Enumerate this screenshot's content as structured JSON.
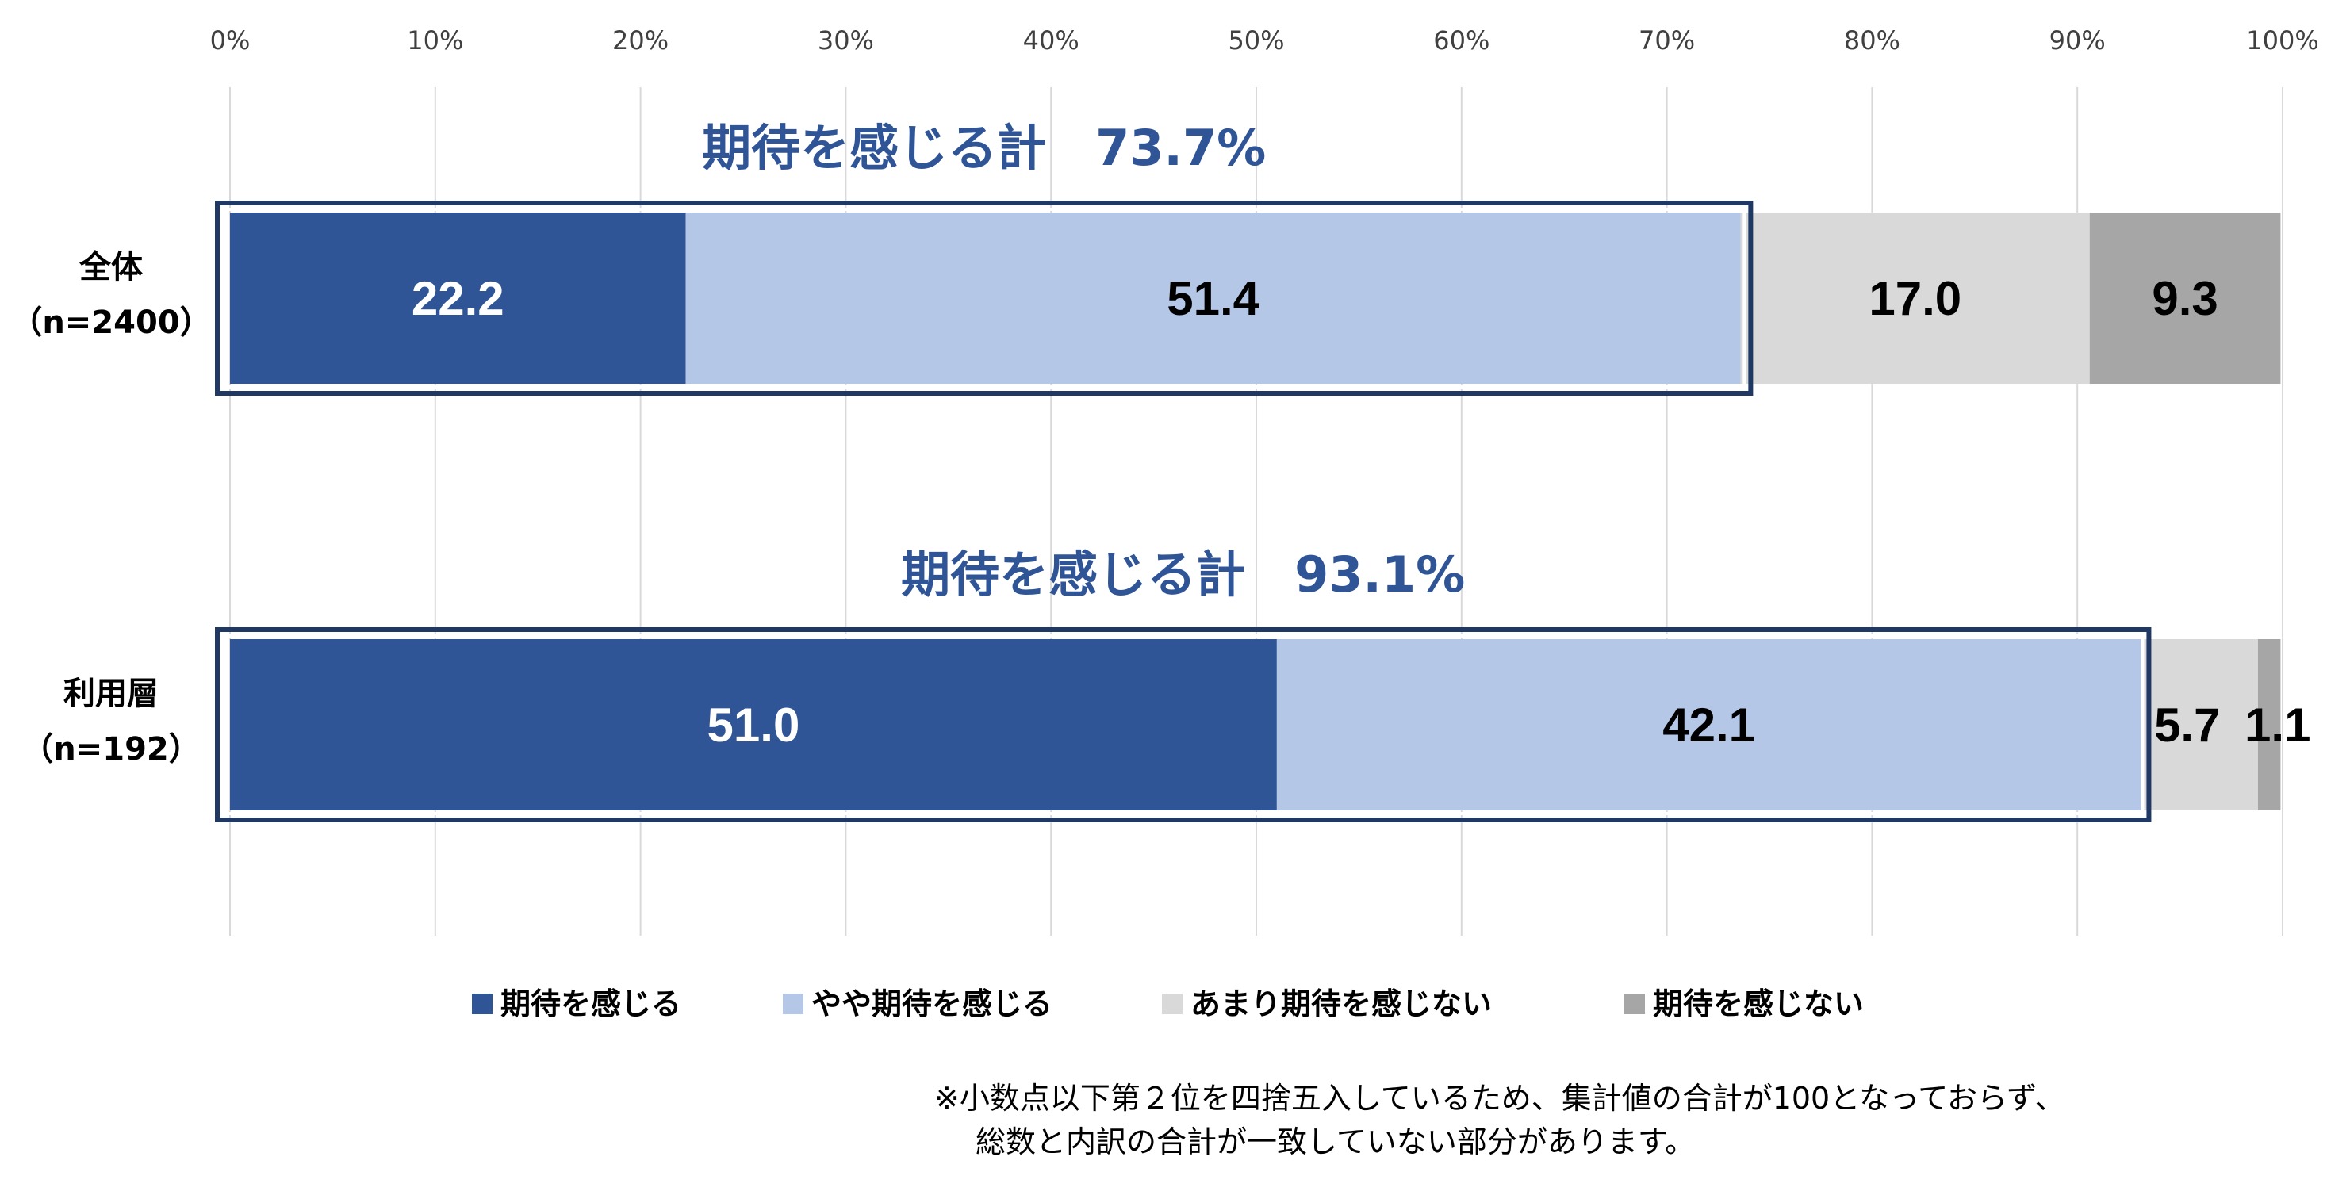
{
  "chart_data": {
    "type": "bar",
    "orientation": "horizontal",
    "stacked": true,
    "x_axis": {
      "range": [
        0,
        100
      ],
      "tick_labels": [
        "0%",
        "10%",
        "20%",
        "30%",
        "40%",
        "50%",
        "60%",
        "70%",
        "80%",
        "90%",
        "100%"
      ],
      "position": "top",
      "grid": true
    },
    "categories": [
      {
        "line1": "全体",
        "line2": "（n=2400）"
      },
      {
        "line1": "利用層",
        "line2": "（n=192）"
      }
    ],
    "series": [
      {
        "name": "期待を感じる",
        "color": "#2F5597",
        "label_color": "#FFFFFF",
        "values": [
          22.2,
          51.0
        ],
        "labels": [
          "22.2",
          "51.0"
        ]
      },
      {
        "name": "やや期待を感じる",
        "color": "#B4C7E7",
        "label_color": "#000000",
        "values": [
          51.4,
          42.1
        ],
        "labels": [
          "51.4",
          "42.1"
        ]
      },
      {
        "name": "あまり期待を感じない",
        "color": "#D9D9D9",
        "label_color": "#000000",
        "values": [
          17.0,
          5.7
        ],
        "labels": [
          "17.0",
          "5.7"
        ]
      },
      {
        "name": "期待を感じない",
        "color": "#A6A6A6",
        "label_color": "#000000",
        "values": [
          9.3,
          1.1
        ],
        "labels": [
          "9.3",
          "1.1"
        ]
      }
    ],
    "annotations": [
      {
        "text": "期待を感じる計　73.7%",
        "total": 73.7
      },
      {
        "text": "期待を感じる計　93.1%",
        "total": 93.1
      }
    ],
    "highlight_box_color": "#1F3864",
    "legend_position": "bottom"
  },
  "footnote": {
    "line1": "※小数点以下第２位を四捨五入しているため、集計値の合計が100となっておらず、",
    "line2": "総数と内訳の合計が一致していない部分があります。"
  }
}
